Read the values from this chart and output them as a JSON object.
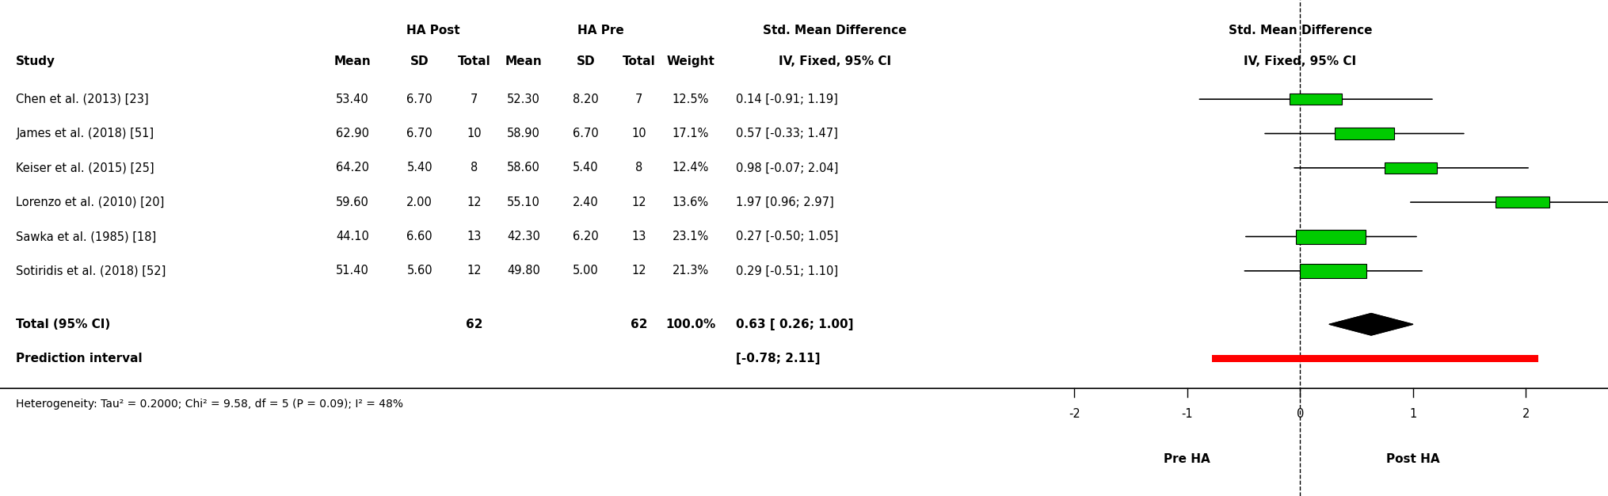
{
  "studies": [
    {
      "name": "Chen et al. (2013) [23]",
      "post_mean": 53.4,
      "post_sd": 6.7,
      "post_n": 7,
      "pre_mean": 52.3,
      "pre_sd": 8.2,
      "pre_n": 7,
      "weight": "12.5%",
      "smd": 0.14,
      "ci_lo": -0.91,
      "ci_hi": 1.19
    },
    {
      "name": "James et al. (2018) [51]",
      "post_mean": 62.9,
      "post_sd": 6.7,
      "post_n": 10,
      "pre_mean": 58.9,
      "pre_sd": 6.7,
      "pre_n": 10,
      "weight": "17.1%",
      "smd": 0.57,
      "ci_lo": -0.33,
      "ci_hi": 1.47
    },
    {
      "name": "Keiser et al. (2015) [25]",
      "post_mean": 64.2,
      "post_sd": 5.4,
      "post_n": 8,
      "pre_mean": 58.6,
      "pre_sd": 5.4,
      "pre_n": 8,
      "weight": "12.4%",
      "smd": 0.98,
      "ci_lo": -0.07,
      "ci_hi": 2.04
    },
    {
      "name": "Lorenzo et al. (2010) [20]",
      "post_mean": 59.6,
      "post_sd": 2.0,
      "post_n": 12,
      "pre_mean": 55.1,
      "pre_sd": 2.4,
      "pre_n": 12,
      "weight": "13.6%",
      "smd": 1.97,
      "ci_lo": 0.96,
      "ci_hi": 2.97
    },
    {
      "name": "Sawka et al. (1985) [18]",
      "post_mean": 44.1,
      "post_sd": 6.6,
      "post_n": 13,
      "pre_mean": 42.3,
      "pre_sd": 6.2,
      "pre_n": 13,
      "weight": "23.1%",
      "smd": 0.27,
      "ci_lo": -0.5,
      "ci_hi": 1.05
    },
    {
      "name": "Sotiridis et al. (2018) [52]",
      "post_mean": 51.4,
      "post_sd": 5.6,
      "post_n": 12,
      "pre_mean": 49.8,
      "pre_sd": 5.0,
      "pre_n": 12,
      "weight": "21.3%",
      "smd": 0.29,
      "ci_lo": -0.51,
      "ci_hi": 1.1
    }
  ],
  "total_n_post": 62,
  "total_n_pre": 62,
  "total_weight": "100.0%",
  "total_smd": 0.63,
  "total_ci_lo": 0.26,
  "total_ci_hi": 1.0,
  "pred_lo": -0.78,
  "pred_hi": 2.11,
  "heterogeneity": "Heterogeneity: Tau² = 0.2000; Chi² = 9.58, df = 5 (P = 0.09); I² = 48%",
  "plot_xlim": [
    -2.6,
    2.6
  ],
  "plot_xticks": [
    -2,
    -1,
    0,
    1,
    2
  ],
  "xlabel_left": "Pre HA",
  "xlabel_right": "Post HA",
  "col_header_group1": "HA Post",
  "col_header_group2": "HA Pre",
  "col_header_smd": "Std. Mean Difference",
  "col_header_method": "IV, Fixed, 95% CI",
  "square_color": "#00CC00",
  "diamond_color": "black",
  "pred_bar_color": "red",
  "dashed_line_color": "black",
  "bg_color": "white"
}
